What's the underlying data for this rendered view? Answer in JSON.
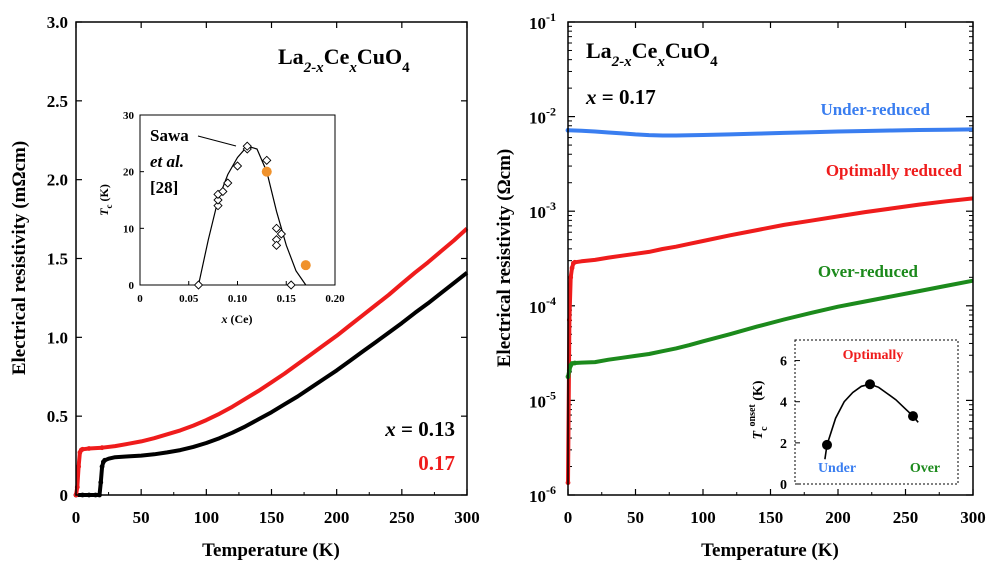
{
  "colors": {
    "red": "#ef1c1c",
    "black": "#000000",
    "blue": "#3a7ef0",
    "green": "#1c8a1c",
    "orange": "#f0922c"
  },
  "chart_data": [
    {
      "type": "line",
      "id": "left-panel",
      "title": "",
      "xlabel": "Temperature (K)",
      "ylabel": "Electrical resistivity (mΩcm)",
      "xlim": [
        0,
        300
      ],
      "ylim": [
        0,
        3.0
      ],
      "xticks": [
        "0",
        "50",
        "100",
        "150",
        "200",
        "250",
        "300"
      ],
      "yticks": [
        "0",
        "0.5",
        "1.0",
        "1.5",
        "2.0",
        "2.5",
        "3.0"
      ],
      "compound": {
        "a": "La",
        "b": "2-x",
        "c": "Ce",
        "d": "x",
        "e": "CuO",
        "f": "4"
      },
      "legend": {
        "x_label": "x = 0.13",
        "x_var": "x",
        "x_rest": " = 0.13",
        "red_label": "0.17"
      },
      "series": [
        {
          "name": "x = 0.13",
          "color": "#000000",
          "x": [
            0,
            5,
            10,
            15,
            18,
            19,
            20,
            21,
            22,
            25,
            30,
            40,
            50,
            60,
            70,
            80,
            90,
            100,
            110,
            120,
            130,
            140,
            150,
            160,
            170,
            180,
            190,
            200,
            210,
            220,
            230,
            240,
            250,
            260,
            270,
            280,
            290,
            300
          ],
          "y": [
            0,
            0,
            0,
            0,
            0,
            0.08,
            0.18,
            0.21,
            0.22,
            0.23,
            0.24,
            0.245,
            0.25,
            0.258,
            0.27,
            0.285,
            0.305,
            0.33,
            0.36,
            0.395,
            0.435,
            0.48,
            0.525,
            0.575,
            0.625,
            0.68,
            0.735,
            0.79,
            0.85,
            0.91,
            0.97,
            1.03,
            1.09,
            1.155,
            1.215,
            1.28,
            1.345,
            1.41
          ]
        },
        {
          "name": "x = 0.17",
          "color": "#ef1c1c",
          "x": [
            0,
            1,
            2,
            3,
            4,
            5,
            10,
            20,
            30,
            40,
            50,
            60,
            70,
            80,
            90,
            100,
            110,
            120,
            130,
            140,
            150,
            160,
            170,
            180,
            190,
            200,
            210,
            220,
            230,
            240,
            250,
            260,
            270,
            280,
            290,
            300
          ],
          "y": [
            0,
            0.05,
            0.18,
            0.27,
            0.285,
            0.29,
            0.295,
            0.3,
            0.31,
            0.325,
            0.34,
            0.36,
            0.385,
            0.41,
            0.44,
            0.475,
            0.515,
            0.56,
            0.61,
            0.66,
            0.715,
            0.77,
            0.83,
            0.89,
            0.95,
            1.01,
            1.075,
            1.14,
            1.205,
            1.27,
            1.34,
            1.41,
            1.475,
            1.545,
            1.615,
            1.69
          ]
        }
      ],
      "inset": {
        "type": "scatter",
        "xlabel_var": "x",
        "xlabel_rest": " (Ce)",
        "ylabel_var": "T",
        "ylabel_sub": "c",
        "ylabel_rest": " (K)",
        "xlim": [
          0,
          0.2
        ],
        "ylim": [
          0,
          30
        ],
        "xticks": [
          "0",
          "0.05",
          "0.10",
          "0.15",
          "0.20"
        ],
        "yticks": [
          "0",
          "10",
          "20",
          "30"
        ],
        "annotation": {
          "line1": "Sawa",
          "line2": "et al.",
          "line3": "[28]"
        },
        "sawa_points": {
          "x": [
            0.06,
            0.08,
            0.08,
            0.08,
            0.085,
            0.09,
            0.1,
            0.11,
            0.11,
            0.13,
            0.14,
            0.14,
            0.14,
            0.145,
            0.155
          ],
          "y": [
            0,
            14,
            15,
            16,
            16.5,
            18,
            21,
            24,
            24.5,
            22,
            10,
            8,
            7,
            9,
            0
          ]
        },
        "this_work": {
          "x": [
            0.13,
            0.17
          ],
          "y": [
            20,
            3.5
          ]
        },
        "curve": {
          "x": [
            0.06,
            0.07,
            0.08,
            0.09,
            0.1,
            0.11,
            0.12,
            0.13,
            0.14,
            0.15,
            0.16,
            0.17
          ],
          "y": [
            0,
            8,
            15,
            19.5,
            22.5,
            24.5,
            24,
            20,
            13,
            7,
            2.5,
            0
          ]
        }
      }
    },
    {
      "type": "line",
      "id": "right-panel",
      "title": "",
      "xlabel": "Temperature (K)",
      "ylabel": "Electrical resistivity (Ωcm)",
      "yscale": "log",
      "xlim": [
        0,
        300
      ],
      "ylim_exp": [
        -6,
        -1
      ],
      "xticks": [
        "0",
        "50",
        "100",
        "150",
        "200",
        "250",
        "300"
      ],
      "ytick_base": "10",
      "ytick_exps": [
        "-6",
        "-5",
        "-4",
        "-3",
        "-2",
        "-1"
      ],
      "compound": {
        "a": "La",
        "b": "2-x",
        "c": "Ce",
        "d": "x",
        "e": "CuO",
        "f": "4"
      },
      "doping": {
        "var": "x",
        "rest": " = 0.17"
      },
      "series": [
        {
          "name": "Under-reduced",
          "color": "#3a7ef0",
          "x": [
            0,
            10,
            20,
            30,
            40,
            50,
            60,
            70,
            80,
            90,
            100,
            120,
            140,
            160,
            180,
            200,
            220,
            240,
            260,
            280,
            300
          ],
          "y_log10": [
            -2.145,
            -2.15,
            -2.158,
            -2.168,
            -2.178,
            -2.188,
            -2.196,
            -2.2,
            -2.2,
            -2.198,
            -2.195,
            -2.188,
            -2.18,
            -2.172,
            -2.165,
            -2.158,
            -2.152,
            -2.147,
            -2.142,
            -2.138,
            -2.135
          ]
        },
        {
          "name": "Optimally reduced",
          "color": "#ef1c1c",
          "x": [
            0,
            1,
            2,
            3,
            4,
            5,
            10,
            20,
            30,
            40,
            50,
            60,
            70,
            80,
            90,
            100,
            120,
            140,
            160,
            180,
            200,
            220,
            240,
            260,
            280,
            300
          ],
          "y_log10": [
            -5.87,
            -4.15,
            -3.7,
            -3.6,
            -3.55,
            -3.54,
            -3.53,
            -3.515,
            -3.49,
            -3.47,
            -3.45,
            -3.43,
            -3.4,
            -3.375,
            -3.345,
            -3.315,
            -3.255,
            -3.2,
            -3.145,
            -3.1,
            -3.055,
            -3.01,
            -2.97,
            -2.93,
            -2.895,
            -2.865
          ]
        },
        {
          "name": "Over-reduced",
          "color": "#1c8a1c",
          "x": [
            0,
            1,
            2,
            3,
            5,
            10,
            20,
            30,
            40,
            50,
            60,
            70,
            80,
            90,
            100,
            120,
            140,
            160,
            180,
            200,
            220,
            240,
            260,
            280,
            300
          ],
          "y_log10": [
            -4.75,
            -4.68,
            -4.63,
            -4.61,
            -4.605,
            -4.6,
            -4.595,
            -4.57,
            -4.55,
            -4.53,
            -4.51,
            -4.48,
            -4.45,
            -4.415,
            -4.375,
            -4.3,
            -4.22,
            -4.145,
            -4.075,
            -4.01,
            -3.955,
            -3.9,
            -3.845,
            -3.79,
            -3.735
          ]
        }
      ],
      "series_labels": [
        "Under-reduced",
        "Optimally reduced",
        "Over-reduced"
      ],
      "inset": {
        "type": "line",
        "ylabel_var": "T",
        "ylabel_sub": "c",
        "ylabel_sup": "onset",
        "ylabel_rest": " (K)",
        "ylim": [
          0,
          7
        ],
        "yticks": [
          "0",
          "2",
          "4",
          "6"
        ],
        "categories": [
          "Under",
          "Optimally",
          "Over"
        ],
        "points": {
          "x": [
            0,
            1,
            2
          ],
          "y": [
            1.9,
            4.85,
            3.3
          ]
        },
        "curve": {
          "x": [
            -0.05,
            0,
            0.2,
            0.4,
            0.6,
            0.8,
            1.0,
            1.2,
            1.4,
            1.6,
            1.8,
            2.0,
            2.12
          ],
          "y": [
            1.2,
            1.9,
            3.2,
            4.0,
            4.45,
            4.75,
            4.85,
            4.7,
            4.4,
            4.1,
            3.7,
            3.3,
            3.0
          ]
        }
      }
    }
  ]
}
